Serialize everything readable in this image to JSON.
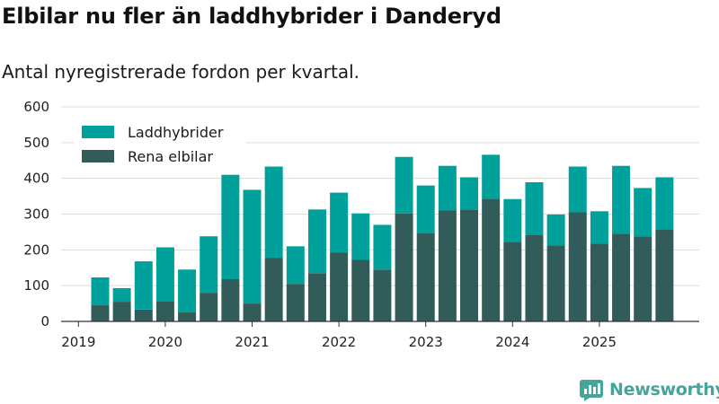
{
  "title": "Elbilar nu fler än laddhybrider i Danderyd",
  "subtitle": "Antal nyregistrerade fordon per kvartal.",
  "brand": "Newsworthy",
  "colors": {
    "laddhybrider": "#00a19a",
    "elbilar": "#325c5a",
    "grid": "#dddddd",
    "axis": "#333333",
    "brand": "#45a59a"
  },
  "chart_data": {
    "type": "bar",
    "stacked": true,
    "title": "Elbilar nu fler än laddhybrider i Danderyd",
    "subtitle": "Antal nyregistrerade fordon per kvartal.",
    "xlabel": "",
    "ylabel": "",
    "ylim": [
      0,
      600
    ],
    "yticks": [
      0,
      100,
      200,
      300,
      400,
      500,
      600
    ],
    "grid": true,
    "legend_position": "top-left",
    "x_ticks": [
      {
        "label": "2019",
        "x": 2019.0
      },
      {
        "label": "2020",
        "x": 2020.0
      },
      {
        "label": "2021",
        "x": 2021.0
      },
      {
        "label": "2022",
        "x": 2022.0
      },
      {
        "label": "2023",
        "x": 2023.0
      },
      {
        "label": "2024",
        "x": 2024.0
      },
      {
        "label": "2025",
        "x": 2025.0
      }
    ],
    "categories": [
      "2019 Q2",
      "2019 Q3",
      "2019 Q4",
      "2020 Q1",
      "2020 Q2",
      "2020 Q3",
      "2020 Q4",
      "2021 Q1",
      "2021 Q2",
      "2021 Q3",
      "2021 Q4",
      "2022 Q1",
      "2022 Q2",
      "2022 Q3",
      "2022 Q4",
      "2023 Q1",
      "2023 Q2",
      "2023 Q3",
      "2023 Q4",
      "2024 Q1",
      "2024 Q2",
      "2024 Q3",
      "2024 Q4",
      "2025 Q1",
      "2025 Q2",
      "2025 Q3",
      "2025 Q4"
    ],
    "x": [
      2019.25,
      2019.5,
      2019.75,
      2020.0,
      2020.25,
      2020.5,
      2020.75,
      2021.0,
      2021.25,
      2021.5,
      2021.75,
      2022.0,
      2022.25,
      2022.5,
      2022.75,
      2023.0,
      2023.25,
      2023.5,
      2023.75,
      2024.0,
      2024.25,
      2024.5,
      2024.75,
      2025.0,
      2025.25,
      2025.5,
      2025.75
    ],
    "series": [
      {
        "name": "Rena elbilar",
        "key": "elbilar",
        "values": [
          45,
          55,
          33,
          57,
          25,
          80,
          118,
          50,
          178,
          105,
          135,
          192,
          172,
          145,
          302,
          247,
          310,
          313,
          343,
          222,
          242,
          212,
          305,
          218,
          245,
          238,
          258
        ]
      },
      {
        "name": "Laddhybrider",
        "key": "laddhybrider",
        "values": [
          78,
          38,
          135,
          150,
          120,
          158,
          292,
          318,
          255,
          105,
          178,
          168,
          130,
          125,
          158,
          133,
          125,
          90,
          123,
          120,
          147,
          87,
          128,
          90,
          190,
          135,
          145
        ]
      }
    ],
    "legend": [
      "Laddhybrider",
      "Rena elbilar"
    ]
  }
}
